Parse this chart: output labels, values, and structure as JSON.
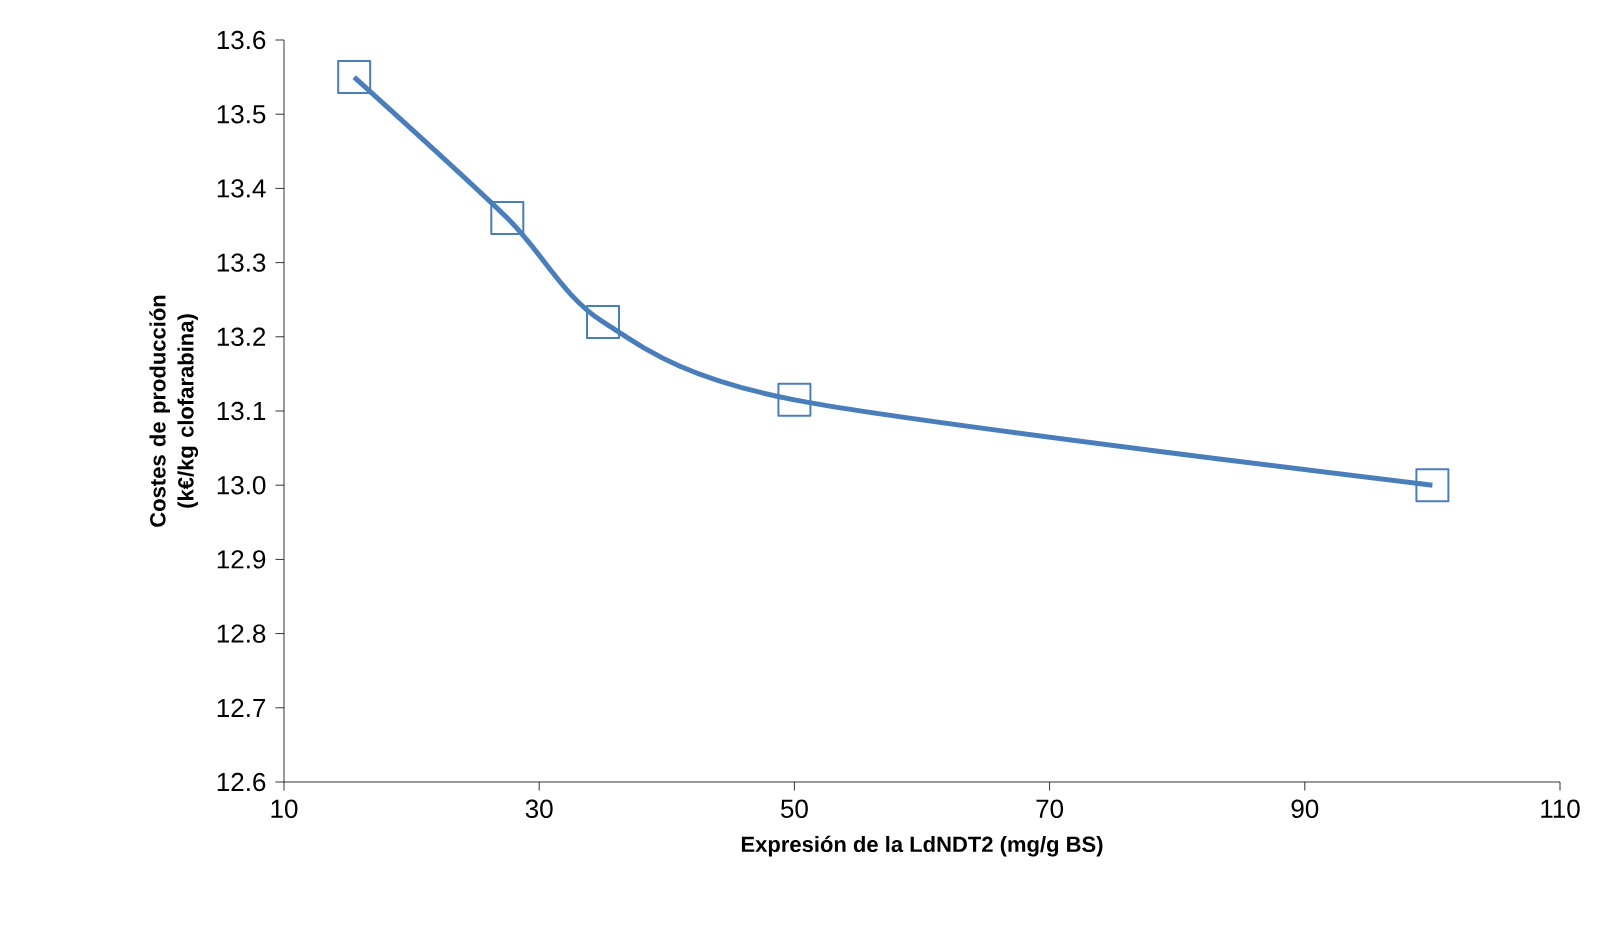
{
  "chart_data": {
    "type": "line",
    "xlabel": "Expresión de la LdNDT2 (mg/g BS)",
    "ylabel": "Costes de producción (k€/kg clofarabina)",
    "x": [
      15.5,
      27.5,
      35,
      50,
      100
    ],
    "series": [
      {
        "color": "#4a7ebb",
        "values": [
          13.55,
          13.36,
          13.22,
          13.115,
          13.0
        ]
      }
    ],
    "marker": "square",
    "line_style": "solid",
    "grid": false,
    "xlim": [
      10,
      110
    ],
    "xticks": [
      10,
      30,
      50,
      70,
      90,
      110
    ],
    "ylim": [
      12.6,
      13.6
    ],
    "yticks": [
      12.6,
      12.7,
      12.8,
      12.9,
      {
        "value": 13.0,
        "label": "13.0"
      },
      13.1,
      13.2,
      13.3,
      13.4,
      13.5,
      13.6
    ]
  }
}
